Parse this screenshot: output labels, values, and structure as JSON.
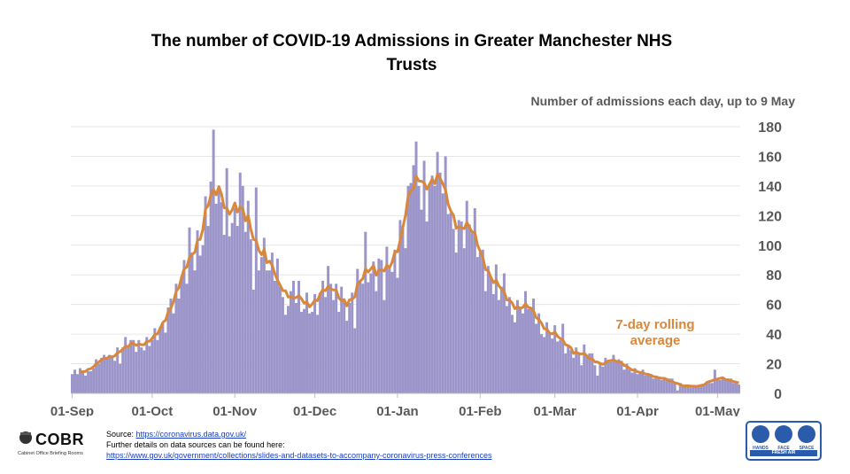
{
  "chart_data": {
    "type": "bar",
    "title": "The number of COVID-19 Admissions in Greater Manchester NHS Trusts",
    "subtitle": "Number of admissions each day, up to 9 May",
    "ylim": [
      0,
      180
    ],
    "yticks": [
      "0",
      "20",
      "40",
      "60",
      "80",
      "100",
      "120",
      "140",
      "160",
      "180"
    ],
    "x_ticks": [
      {
        "label": "01-Sep",
        "day": 0
      },
      {
        "label": "01-Oct",
        "day": 30
      },
      {
        "label": "01-Nov",
        "day": 61
      },
      {
        "label": "01-Dec",
        "day": 91
      },
      {
        "label": "01-Jan",
        "day": 122
      },
      {
        "label": "01-Feb",
        "day": 153
      },
      {
        "label": "01-Mar",
        "day": 181
      },
      {
        "label": "01-Apr",
        "day": 212
      },
      {
        "label": "01-May",
        "day": 242
      }
    ],
    "start_date": "01-Sep",
    "end_date": "09-May",
    "bar_color": "#9b95c9",
    "line_color": "#d9873a",
    "line_label": "7-day rolling average",
    "anchors": [
      [
        0,
        12
      ],
      [
        3,
        17
      ],
      [
        6,
        14
      ],
      [
        10,
        21
      ],
      [
        15,
        26
      ],
      [
        20,
        32
      ],
      [
        25,
        34
      ],
      [
        30,
        35
      ],
      [
        33,
        40
      ],
      [
        36,
        55
      ],
      [
        40,
        70
      ],
      [
        43,
        80
      ],
      [
        46,
        100
      ],
      [
        49,
        112
      ],
      [
        52,
        130
      ],
      [
        54,
        138
      ],
      [
        57,
        128
      ],
      [
        60,
        124
      ],
      [
        64,
        123
      ],
      [
        67,
        110
      ],
      [
        71,
        96
      ],
      [
        75,
        85
      ],
      [
        79,
        76
      ],
      [
        83,
        68
      ],
      [
        88,
        60
      ],
      [
        92,
        65
      ],
      [
        96,
        72
      ],
      [
        100,
        64
      ],
      [
        104,
        58
      ],
      [
        108,
        74
      ],
      [
        111,
        90
      ],
      [
        114,
        84
      ],
      [
        118,
        82
      ],
      [
        121,
        88
      ],
      [
        124,
        110
      ],
      [
        127,
        133
      ],
      [
        130,
        144
      ],
      [
        134,
        146
      ],
      [
        138,
        142
      ],
      [
        141,
        128
      ],
      [
        145,
        118
      ],
      [
        150,
        108
      ],
      [
        154,
        93
      ],
      [
        158,
        76
      ],
      [
        162,
        68
      ],
      [
        166,
        62
      ],
      [
        170,
        58
      ],
      [
        175,
        53
      ],
      [
        180,
        40
      ],
      [
        184,
        32
      ],
      [
        188,
        30
      ],
      [
        192,
        27
      ],
      [
        196,
        23
      ],
      [
        200,
        22
      ],
      [
        204,
        22
      ],
      [
        208,
        19
      ],
      [
        212,
        14
      ],
      [
        216,
        12
      ],
      [
        220,
        11
      ],
      [
        224,
        9
      ],
      [
        228,
        7
      ],
      [
        232,
        5
      ],
      [
        236,
        4
      ],
      [
        239,
        7
      ],
      [
        242,
        10
      ],
      [
        245,
        10
      ],
      [
        250,
        6
      ]
    ],
    "spikes": {
      "13": 3,
      "18": -8,
      "37": 12,
      "44": 15,
      "53": 22,
      "55": -12,
      "58": 18,
      "61": -14,
      "63": 10,
      "68": -20,
      "69": 30,
      "74": -18,
      "80": -25,
      "86": -14,
      "101": 16,
      "106": -18,
      "110": 15,
      "117": -16,
      "123": 20,
      "128": 22,
      "131": -15,
      "136": 18,
      "143": -20,
      "160": -10,
      "165": -12,
      "176": -10,
      "184": 10,
      "191": -8,
      "197": -12,
      "227": -6,
      "241": 6
    }
  },
  "annotation": {
    "line1": "7-day rolling",
    "line2": "average"
  },
  "footer": {
    "logo_text": "COBR",
    "logo_sub": "Cabinet Office Briefing Rooms",
    "source_label": "Source:",
    "source_url": "https://coronavirus.data.gov.uk/",
    "further_text": "Further details on data sources can be found here:",
    "further_url": "https://www.gov.uk/government/collections/slides-and-datasets-to-accompany-coronavirus-press-conferences"
  },
  "hfs": {
    "hands": "HANDS",
    "face": "FACE",
    "space": "SPACE",
    "fresh_air": "FRESH AIR"
  }
}
